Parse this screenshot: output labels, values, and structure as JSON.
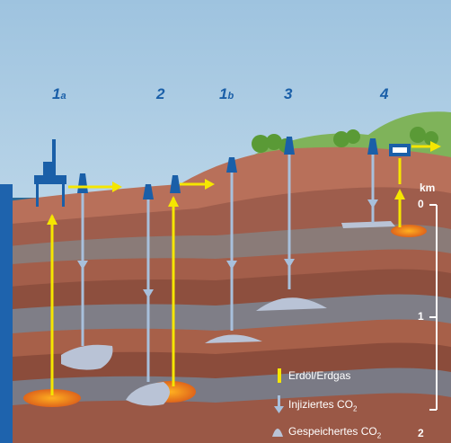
{
  "sites": [
    {
      "num": "1",
      "suffix": "a"
    },
    {
      "num": "2",
      "suffix": ""
    },
    {
      "num": "1",
      "suffix": "b"
    },
    {
      "num": "3",
      "suffix": ""
    },
    {
      "num": "4",
      "suffix": ""
    }
  ],
  "depth_scale": {
    "unit": "km",
    "ticks": [
      "0",
      "1",
      "2"
    ]
  },
  "legend": [
    {
      "label": "Erdöl/Erdgas",
      "sub": ""
    },
    {
      "label": "Injiziertes CO",
      "sub": "2"
    },
    {
      "label": "Gespeichertes CO",
      "sub": "2"
    }
  ],
  "colors": {
    "sky": "#8fb9d8",
    "sea": "#1f5f8e",
    "oil_gas_arrow": "#f5e600",
    "co2_pipe": "#a8c0dc",
    "stored_co2": "#b9c3d6",
    "oil_reservoir": "#e8721b",
    "platform": "#1a5fa8",
    "hills": "#6da94e"
  }
}
